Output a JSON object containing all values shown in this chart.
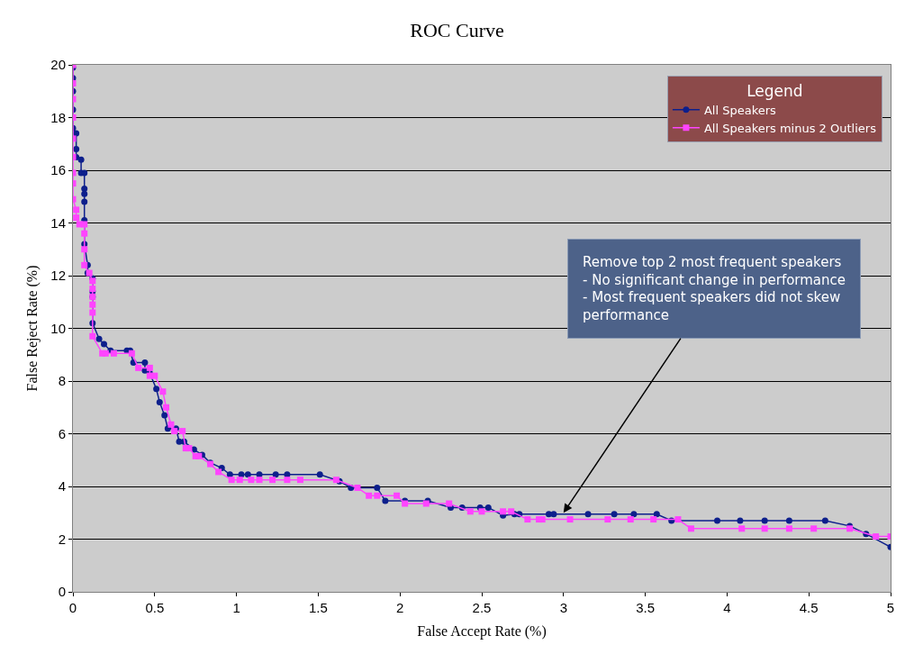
{
  "chart_data": {
    "type": "line",
    "title": "ROC Curve",
    "xlabel": "False Accept Rate (%)",
    "ylabel": "False Reject Rate (%)",
    "legend_title": "Legend",
    "xlim": [
      0,
      5
    ],
    "xticks": [
      0,
      0.5,
      1,
      1.5,
      2,
      2.5,
      3,
      3.5,
      4,
      4.5,
      5
    ],
    "ylim": [
      0,
      20
    ],
    "yticks": [
      0,
      2,
      4,
      6,
      8,
      10,
      12,
      14,
      16,
      18,
      20
    ],
    "grid": "y",
    "legend": "top right",
    "line_style": "solid",
    "annotations": [
      {
        "text": "Remove top 2 most frequent speakers\n- No significant change in performance\n- Most frequent speakers did not skew\nperformance",
        "x": 3.0,
        "y": 3.0
      }
    ],
    "series": [
      {
        "name": "All Speakers",
        "color": "#0d1f8c",
        "marker": "circle",
        "x": [
          0,
          0,
          0,
          0,
          0,
          0.02,
          0.02,
          0.02,
          0.05,
          0.05,
          0.07,
          0.07,
          0.07,
          0.07,
          0.07,
          0.07,
          0.09,
          0.09,
          0.12,
          0.12,
          0.12,
          0.12,
          0.16,
          0.19,
          0.23,
          0.33,
          0.35,
          0.37,
          0.44,
          0.44,
          0.47,
          0.51,
          0.53,
          0.56,
          0.58,
          0.63,
          0.65,
          0.68,
          0.74,
          0.79,
          0.84,
          0.91,
          0.96,
          1.03,
          1.07,
          1.14,
          1.24,
          1.31,
          1.51,
          1.63,
          1.7,
          1.86,
          1.91,
          2.03,
          2.17,
          2.31,
          2.38,
          2.49,
          2.54,
          2.63,
          2.7,
          2.73,
          2.91,
          2.94,
          3.15,
          3.31,
          3.43,
          3.57,
          3.66,
          3.94,
          4.08,
          4.23,
          4.38,
          4.6,
          4.75,
          4.85,
          5.0
        ],
        "values": [
          19.9,
          19.5,
          19.0,
          18.3,
          17.6,
          17.4,
          16.8,
          16.5,
          16.4,
          15.9,
          15.9,
          15.3,
          15.1,
          14.8,
          14.1,
          13.2,
          12.4,
          12.1,
          11.9,
          11.4,
          11.2,
          10.2,
          9.6,
          9.4,
          9.15,
          9.15,
          9.15,
          8.7,
          8.7,
          8.4,
          8.3,
          7.7,
          7.2,
          6.7,
          6.2,
          6.2,
          5.7,
          5.7,
          5.4,
          5.2,
          4.9,
          4.7,
          4.45,
          4.45,
          4.45,
          4.45,
          4.45,
          4.45,
          4.45,
          4.2,
          3.95,
          3.95,
          3.45,
          3.45,
          3.45,
          3.2,
          3.2,
          3.2,
          3.2,
          2.9,
          2.95,
          2.95,
          2.95,
          2.95,
          2.95,
          2.95,
          2.95,
          2.95,
          2.7,
          2.7,
          2.7,
          2.7,
          2.7,
          2.7,
          2.5,
          2.2,
          1.7
        ]
      },
      {
        "name": "All Speakers minus 2 Outliers",
        "color": "#ff44ff",
        "marker": "square",
        "x": [
          0,
          0,
          0,
          0,
          0,
          0,
          0,
          0,
          0,
          0.02,
          0.02,
          0.04,
          0.07,
          0.07,
          0.07,
          0.07,
          0.1,
          0.12,
          0.12,
          0.12,
          0.12,
          0.12,
          0.12,
          0.18,
          0.2,
          0.25,
          0.36,
          0.4,
          0.47,
          0.47,
          0.5,
          0.55,
          0.57,
          0.6,
          0.62,
          0.67,
          0.69,
          0.71,
          0.75,
          0.77,
          0.84,
          0.89,
          0.97,
          1.02,
          1.09,
          1.14,
          1.22,
          1.31,
          1.39,
          1.61,
          1.74,
          1.81,
          1.86,
          1.98,
          2.03,
          2.16,
          2.3,
          2.43,
          2.5,
          2.63,
          2.68,
          2.78,
          2.85,
          2.87,
          3.04,
          3.27,
          3.41,
          3.55,
          3.7,
          3.78,
          4.09,
          4.23,
          4.38,
          4.53,
          4.75,
          4.91,
          5.0
        ],
        "values": [
          20.0,
          19.3,
          18.7,
          18.0,
          17.2,
          16.5,
          15.9,
          15.5,
          14.9,
          14.5,
          14.2,
          13.95,
          13.95,
          13.6,
          13.0,
          12.4,
          12.1,
          11.8,
          11.5,
          11.2,
          10.9,
          10.6,
          9.7,
          9.05,
          9.05,
          9.05,
          9.05,
          8.5,
          8.5,
          8.2,
          8.2,
          7.6,
          7.0,
          6.35,
          6.1,
          6.1,
          5.45,
          5.45,
          5.15,
          5.15,
          4.85,
          4.55,
          4.25,
          4.25,
          4.25,
          4.25,
          4.25,
          4.25,
          4.25,
          4.25,
          3.95,
          3.65,
          3.65,
          3.65,
          3.35,
          3.35,
          3.35,
          3.05,
          3.05,
          3.05,
          3.05,
          2.75,
          2.75,
          2.75,
          2.75,
          2.75,
          2.75,
          2.75,
          2.75,
          2.4,
          2.4,
          2.4,
          2.4,
          2.4,
          2.4,
          2.1,
          2.1
        ]
      }
    ]
  }
}
